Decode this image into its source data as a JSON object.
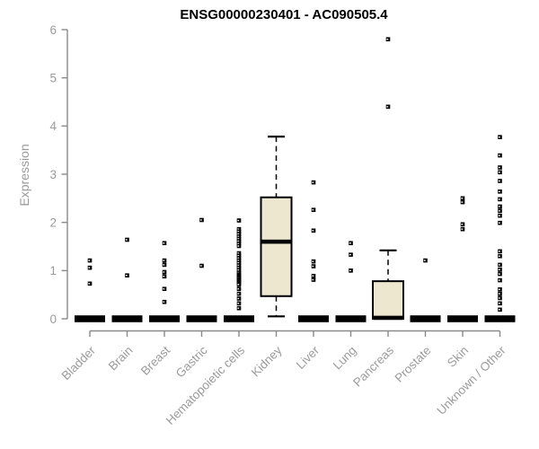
{
  "chart_title": "ENSG00000230401 - AC090505.4",
  "y_axis_label": "Expression",
  "colors": {
    "title": "#000000",
    "axis_line": "#8a8a8a",
    "axis_text": "#9b9b9b",
    "box_fill": "#EDE7D0",
    "box_stroke": "#000000",
    "point": "#000000",
    "background": "#ffffff"
  },
  "chart_data": {
    "type": "box",
    "title": "ENSG00000230401 - AC090505.4",
    "xlabel": "",
    "ylabel": "Expression",
    "ylim": [
      0,
      6
    ],
    "yticks": [
      0,
      1,
      2,
      3,
      4,
      5,
      6
    ],
    "grid": false,
    "legend": false,
    "categories": [
      "Bladder",
      "Brain",
      "Breast",
      "Gastric",
      "Hematopoietic cells",
      "Kidney",
      "Liver",
      "Lung",
      "Pancreas",
      "Prostate",
      "Skin",
      "Unknown / Other"
    ],
    "series": [
      {
        "name": "Bladder",
        "q1": 0,
        "median": 0,
        "q3": 0,
        "whisker_low": 0,
        "whisker_high": 0,
        "outliers": [
          1.21,
          1.06,
          0.73
        ]
      },
      {
        "name": "Brain",
        "q1": 0,
        "median": 0,
        "q3": 0,
        "whisker_low": 0,
        "whisker_high": 0,
        "outliers": [
          1.64,
          0.9
        ]
      },
      {
        "name": "Breast",
        "q1": 0,
        "median": 0,
        "q3": 0,
        "whisker_low": 0,
        "whisker_high": 0,
        "outliers": [
          1.57,
          1.21,
          1.12,
          0.97,
          0.88,
          0.62,
          0.35
        ]
      },
      {
        "name": "Gastric",
        "q1": 0,
        "median": 0,
        "q3": 0,
        "whisker_low": 0,
        "whisker_high": 0,
        "outliers": [
          2.05,
          1.1
        ]
      },
      {
        "name": "Hematopoietic cells",
        "q1": 0,
        "median": 0,
        "q3": 0,
        "whisker_low": 0,
        "whisker_high": 0,
        "outliers": [
          2.04,
          1.86,
          1.81,
          1.76,
          1.71,
          1.66,
          1.61,
          1.56,
          1.51,
          1.36,
          1.31,
          1.26,
          1.21,
          1.16,
          1.11,
          1.06,
          1.01,
          0.96,
          0.92,
          0.89,
          0.86,
          0.83,
          0.8,
          0.77,
          0.74,
          0.71,
          0.62,
          0.52,
          0.42,
          0.32,
          0.22
        ]
      },
      {
        "name": "Kidney",
        "q1": 0.47,
        "median": 1.6,
        "q3": 2.52,
        "whisker_low": 0.05,
        "whisker_high": 3.78,
        "outliers": []
      },
      {
        "name": "Liver",
        "q1": 0,
        "median": 0,
        "q3": 0,
        "whisker_low": 0,
        "whisker_high": 0,
        "outliers": [
          2.83,
          2.26,
          1.83,
          1.19,
          1.09,
          0.89,
          0.81
        ]
      },
      {
        "name": "Lung",
        "q1": 0,
        "median": 0,
        "q3": 0,
        "whisker_low": 0,
        "whisker_high": 0,
        "outliers": [
          1.57,
          1.33,
          1.0
        ]
      },
      {
        "name": "Pancreas",
        "q1": 0,
        "median": 0.02,
        "q3": 0.78,
        "whisker_low": 0,
        "whisker_high": 1.42,
        "outliers": [
          5.8,
          4.4
        ]
      },
      {
        "name": "Prostate",
        "q1": 0,
        "median": 0,
        "q3": 0,
        "whisker_low": 0,
        "whisker_high": 0,
        "outliers": [
          1.21
        ]
      },
      {
        "name": "Skin",
        "q1": 0,
        "median": 0,
        "q3": 0,
        "whisker_low": 0,
        "whisker_high": 0,
        "outliers": [
          2.5,
          2.42,
          1.96,
          1.86
        ]
      },
      {
        "name": "Unknown / Other",
        "q1": 0,
        "median": 0,
        "q3": 0,
        "whisker_low": 0,
        "whisker_high": 0,
        "outliers": [
          3.77,
          3.39,
          3.14,
          3.04,
          2.86,
          2.64,
          2.48,
          2.33,
          2.24,
          2.14,
          1.99,
          1.4,
          1.3,
          1.12,
          1.02,
          0.93,
          0.8,
          0.61,
          0.52,
          0.43,
          0.32,
          0.19
        ]
      }
    ]
  }
}
